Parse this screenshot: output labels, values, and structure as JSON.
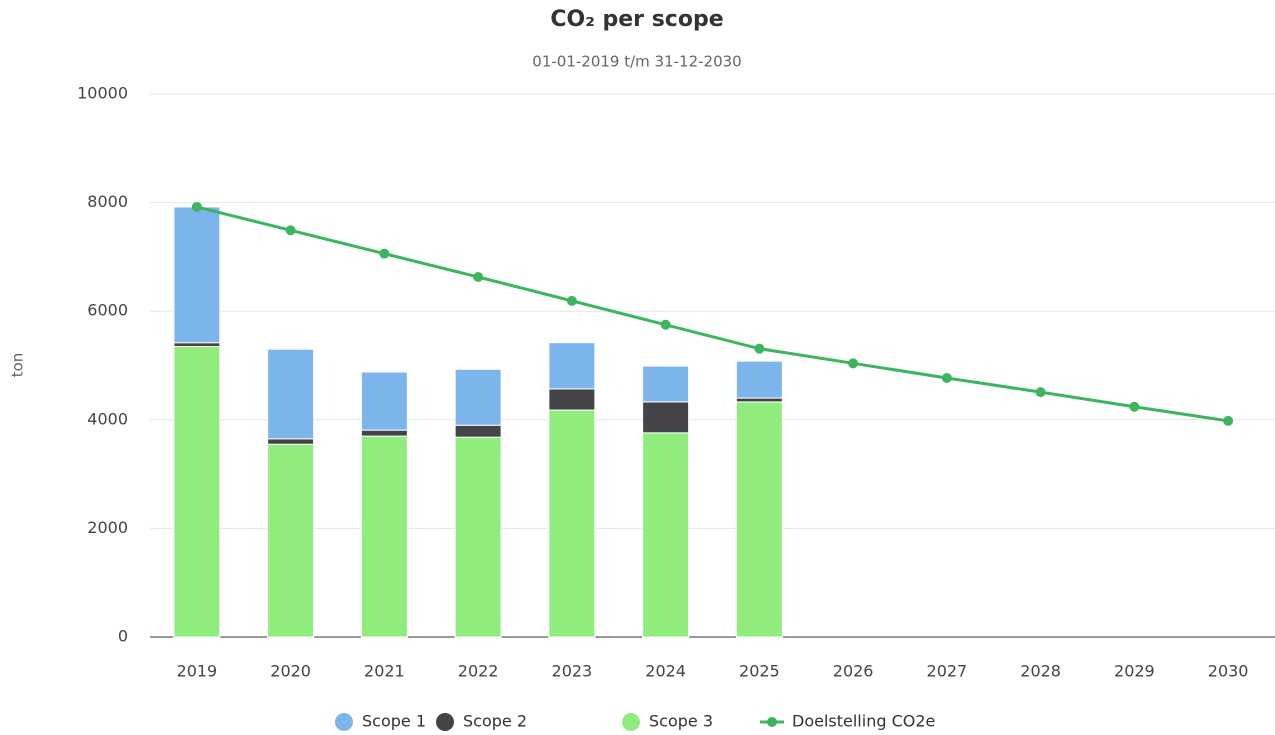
{
  "chart_data": {
    "type": "stacked-bar-line",
    "title": "CO₂ per scope",
    "subtitle": "01-01-2019 t/m 31-12-2030",
    "y_label": "ton",
    "categories": [
      "2019",
      "2020",
      "2021",
      "2022",
      "2023",
      "2024",
      "2025",
      "2026",
      "2027",
      "2028",
      "2029",
      "2030"
    ],
    "series": [
      {
        "name": "Scope 1",
        "type": "bar",
        "color": "#7cb5ec",
        "values": [
          2500,
          1650,
          1070,
          1030,
          850,
          660,
          680,
          null,
          null,
          null,
          null,
          null
        ]
      },
      {
        "name": "Scope 2",
        "type": "bar",
        "color": "#434348",
        "values": [
          70,
          100,
          110,
          220,
          390,
          570,
          70,
          null,
          null,
          null,
          null,
          null
        ]
      },
      {
        "name": "Scope 3",
        "type": "bar",
        "color": "#90ed7d",
        "values": [
          5350,
          3550,
          3700,
          3680,
          4180,
          3760,
          4330,
          null,
          null,
          null,
          null,
          null
        ]
      },
      {
        "name": "Doelstelling CO2e",
        "type": "line",
        "color": "#3cb55e",
        "values": [
          7920,
          7490,
          7060,
          6630,
          6190,
          5750,
          5310,
          5040,
          4770,
          4510,
          4240,
          3980
        ]
      }
    ],
    "ylim": [
      0,
      10000
    ],
    "yticks": [
      0,
      2000,
      4000,
      6000,
      8000,
      10000
    ],
    "grid": true,
    "legend": "bottom"
  }
}
